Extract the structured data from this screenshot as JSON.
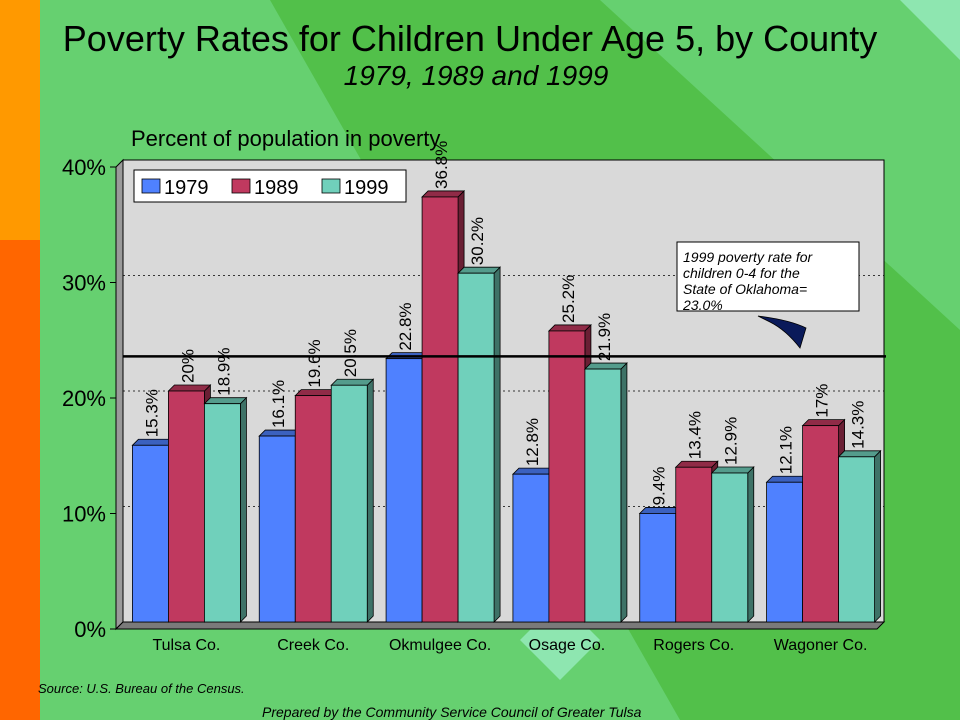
{
  "title": "Poverty Rates for Children Under Age 5, by County",
  "subtitle": "1979, 1989 and 1999",
  "source": "Source:  U.S. Bureau of the Census.",
  "prepared_by": "Prepared by the Community Service Council of Greater Tulsa",
  "colors": {
    "background": "#5cc85a",
    "plot_area": "#d9d9d9",
    "series_1979": "#4f81ff",
    "series_1989": "#c0395f",
    "series_1999": "#70d0bb"
  },
  "chart_data": {
    "type": "bar",
    "title": "",
    "ylabel": "Percent of population in poverty",
    "xlabel": "",
    "ylim": [
      0,
      40
    ],
    "yticks": [
      "0%",
      "10%",
      "20%",
      "30%",
      "40%"
    ],
    "grid": true,
    "legend_position": "top-left",
    "categories": [
      "Tulsa Co.",
      "Creek Co.",
      "Okmulgee Co.",
      "Osage Co.",
      "Rogers Co.",
      "Wagoner Co."
    ],
    "series": [
      {
        "name": "1979",
        "values": [
          15.3,
          16.1,
          22.8,
          12.8,
          9.4,
          12.1
        ],
        "labels": [
          "15.3%",
          "16.1%",
          "22.8%",
          "12.8%",
          "9.4%",
          "12.1%"
        ]
      },
      {
        "name": "1989",
        "values": [
          20,
          19.6,
          36.8,
          25.2,
          13.4,
          17
        ],
        "labels": [
          "20%",
          "19.6%",
          "36.8%",
          "25.2%",
          "13.4%",
          "17%"
        ]
      },
      {
        "name": "1999",
        "values": [
          18.9,
          20.5,
          30.2,
          21.9,
          12.9,
          14.3
        ],
        "labels": [
          "18.9%",
          "20.5%",
          "30.2%",
          "21.9%",
          "12.9%",
          "14.3%"
        ]
      }
    ],
    "reference_line": {
      "value": 23.0,
      "annotation": [
        "1999 poverty rate for",
        "children 0-4 for the",
        "State of Oklahoma=",
        "23.0%"
      ]
    }
  }
}
